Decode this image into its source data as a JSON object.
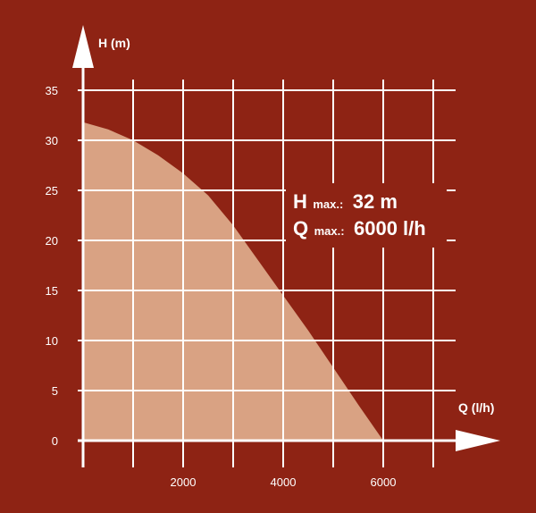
{
  "colors": {
    "background": "#8e2314",
    "grid": "#ffffff",
    "area": "#d9a283"
  },
  "chart_data": {
    "type": "area",
    "title": "",
    "xlabel": "Q (l/h)",
    "ylabel": "H (m)",
    "xlim": [
      0,
      7000
    ],
    "ylim": [
      0,
      35
    ],
    "x_ticks": [
      "2000",
      "4000",
      "6000"
    ],
    "y_ticks": [
      "0",
      "5",
      "10",
      "15",
      "20",
      "25",
      "30",
      "35"
    ],
    "grid": true,
    "series": [
      {
        "x": [
          0,
          500,
          1000,
          1500,
          2000,
          2500,
          3000,
          3500,
          4000,
          4500,
          5000,
          5500,
          6000
        ],
        "y": [
          31.8,
          31.1,
          30.0,
          28.5,
          26.7,
          24.5,
          21.5,
          18.0,
          14.5,
          11.0,
          7.3,
          3.6,
          0
        ]
      }
    ],
    "annotations": {
      "hmax": {
        "letter": "H",
        "sub": "max.:",
        "value": "32 m"
      },
      "qmax": {
        "letter": "Q",
        "sub": "max.:",
        "value": "6000 l/h"
      }
    }
  }
}
